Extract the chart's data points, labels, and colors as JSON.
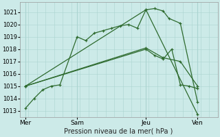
{
  "background_color": "#cceae8",
  "grid_color": "#aad4d0",
  "line_color": "#2d6a2d",
  "xlabel": "Pression niveau de la mer( hPa )",
  "ylim": [
    1012.5,
    1021.8
  ],
  "yticks": [
    1013,
    1014,
    1015,
    1016,
    1017,
    1018,
    1019,
    1020,
    1021
  ],
  "day_labels": [
    "Mer",
    "Sam",
    "Jeu",
    "Ven"
  ],
  "day_positions": [
    0,
    36,
    84,
    120
  ],
  "xlim": [
    -4,
    134
  ],
  "series": [
    {
      "x": [
        0,
        6,
        12,
        18,
        24,
        36,
        42,
        48,
        54,
        60,
        66,
        72,
        78,
        84,
        90,
        96,
        100,
        108,
        120
      ],
      "y": [
        1013.2,
        1014.0,
        1014.7,
        1015.0,
        1015.1,
        1019.0,
        1018.7,
        1019.3,
        1019.5,
        1019.7,
        1019.9,
        1020.0,
        1019.7,
        1021.2,
        1021.3,
        1021.1,
        1020.5,
        1020.1,
        1013.7
      ]
    },
    {
      "x": [
        0,
        84,
        120
      ],
      "y": [
        1015.0,
        1021.2,
        1012.7
      ]
    },
    {
      "x": [
        0,
        84,
        96,
        108,
        120
      ],
      "y": [
        1015.0,
        1018.1,
        1017.3,
        1017.0,
        1015.0
      ]
    },
    {
      "x": [
        0,
        84,
        90,
        96,
        102,
        108,
        114,
        120
      ],
      "y": [
        1015.0,
        1018.0,
        1017.5,
        1017.2,
        1018.0,
        1015.1,
        1015.0,
        1014.8
      ]
    }
  ]
}
